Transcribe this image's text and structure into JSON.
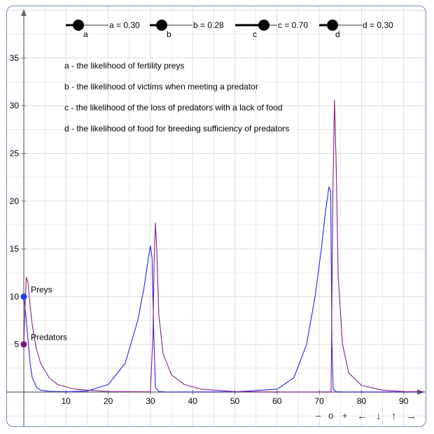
{
  "sliders": [
    {
      "name": "a",
      "label": "a",
      "readout": "a = 0.30",
      "value": 0.3
    },
    {
      "name": "b",
      "label": "b",
      "readout": "b = 0.28",
      "value": 0.28
    },
    {
      "name": "c",
      "label": "c",
      "readout": "c = 0.70",
      "value": 0.7
    },
    {
      "name": "d",
      "label": "d",
      "readout": "d = 0.30",
      "value": 0.3
    }
  ],
  "descriptions": [
    "a - the likelihood of fertility preys",
    "b - the likelihood of victims when meeting a predator",
    "c - the likelihood of the loss of predators with a lack of food",
    "d - the likelihood of food for breeding sufficiency of predators"
  ],
  "nav_buttons": [
    "–",
    "o",
    "+",
    "←",
    "↓",
    "↑",
    "→"
  ],
  "colors": {
    "preys": "#2222ee",
    "predators": "#8b1a89",
    "grid": "#dddddd",
    "axis": "#666666"
  },
  "chart_data": {
    "type": "line",
    "xlim": [
      -2.5,
      95
    ],
    "ylim": [
      -3,
      40
    ],
    "x_ticks": [
      10,
      20,
      30,
      40,
      50,
      60,
      70,
      80,
      90
    ],
    "y_ticks": [
      5,
      10,
      15,
      20,
      25,
      30,
      35
    ],
    "grid": true,
    "series": [
      {
        "name": "Preys",
        "color": "#2222ee",
        "x": [
          0,
          0.5,
          1,
          1.5,
          2,
          3,
          4,
          6,
          10,
          15,
          20,
          24,
          27,
          28.5,
          29.5,
          30.0,
          30.4,
          30.8,
          31.2,
          32,
          34,
          40,
          50,
          60,
          64,
          67,
          69,
          70.5,
          71.5,
          72.3,
          72.7,
          73.0,
          73.3,
          74,
          76,
          80,
          90,
          95
        ],
        "values": [
          10,
          8,
          5.5,
          3,
          1.5,
          0.5,
          0.2,
          0.08,
          0.03,
          0.1,
          0.8,
          3,
          7.5,
          11,
          14,
          15.3,
          14,
          6,
          0.5,
          0.05,
          0.01,
          0.01,
          0.02,
          0.3,
          1.5,
          5,
          10,
          15,
          19,
          21.5,
          21,
          5,
          0.3,
          0.03,
          0.01,
          0.01,
          0.01,
          0.01
        ]
      },
      {
        "name": "Predators",
        "color": "#8b1a89",
        "x": [
          0,
          0.3,
          0.6,
          1,
          1.5,
          2,
          3,
          4,
          6,
          8,
          12,
          20,
          30,
          30.6,
          30.9,
          31.2,
          31.5,
          32,
          33,
          35,
          38,
          42,
          50,
          60,
          70,
          72.8,
          73.2,
          73.6,
          74,
          74.5,
          75.5,
          77,
          80,
          85,
          90,
          95
        ],
        "values": [
          5,
          9,
          12,
          11.5,
          9,
          7,
          4.5,
          3,
          1.5,
          0.8,
          0.3,
          0.05,
          0.02,
          6,
          14,
          17.7,
          15,
          8,
          4,
          1.8,
          0.8,
          0.3,
          0.05,
          0.01,
          0.01,
          0.02,
          20,
          30.6,
          24,
          12,
          5,
          2,
          0.7,
          0.2,
          0.05,
          0.02
        ]
      }
    ],
    "points": [
      {
        "label": "Preys",
        "x": 0,
        "y": 10,
        "color": "#1f3fff"
      },
      {
        "label": "Predators",
        "x": 0,
        "y": 5,
        "color": "#7a1a78"
      }
    ]
  }
}
